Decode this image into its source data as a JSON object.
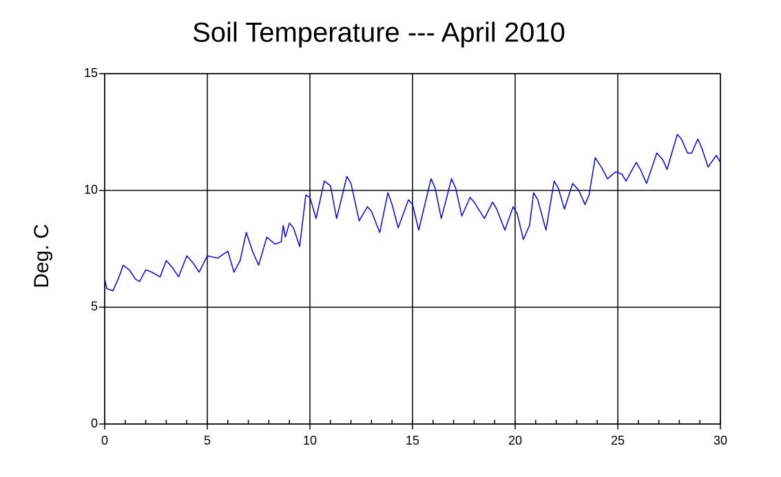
{
  "chart_data": {
    "type": "line",
    "title": "Soil Temperature --- April 2010",
    "y_label": "Deg. C",
    "xlim": [
      0,
      30
    ],
    "ylim": [
      0,
      15
    ],
    "xticks": [
      0,
      5,
      10,
      15,
      20,
      25,
      30
    ],
    "yticks": [
      0,
      5,
      10,
      15
    ],
    "grid": true,
    "series": [
      {
        "color": "#0000ff",
        "x": [
          0,
          0.1,
          0.4,
          0.7,
          0.9,
          1.2,
          1.5,
          1.7,
          2.0,
          2.3,
          2.7,
          3.0,
          3.3,
          3.6,
          4.0,
          4.3,
          4.6,
          5.0,
          5.5,
          6.0,
          6.3,
          6.6,
          6.9,
          7.2,
          7.5,
          7.9,
          8.3,
          8.6,
          8.7,
          8.8,
          9.0,
          9.2,
          9.5,
          9.8,
          10.0,
          10.3,
          10.7,
          11.0,
          11.3,
          11.8,
          12.0,
          12.4,
          12.8,
          13.0,
          13.4,
          13.8,
          14.0,
          14.3,
          14.8,
          15.0,
          15.3,
          15.9,
          16.1,
          16.4,
          16.9,
          17.1,
          17.4,
          17.8,
          18.0,
          18.5,
          18.9,
          19.1,
          19.5,
          19.9,
          20.1,
          20.4,
          20.7,
          20.9,
          21.1,
          21.5,
          21.9,
          22.1,
          22.4,
          22.8,
          23.1,
          23.4,
          23.6,
          23.9,
          24.2,
          24.5,
          24.9,
          25.2,
          25.4,
          25.9,
          26.1,
          26.4,
          26.9,
          27.2,
          27.4,
          27.9,
          28.1,
          28.4,
          28.6,
          28.9,
          29.1,
          29.4,
          29.8,
          30.0
        ],
        "values": [
          6.2,
          5.8,
          5.7,
          6.3,
          6.8,
          6.6,
          6.2,
          6.1,
          6.6,
          6.5,
          6.3,
          7.0,
          6.7,
          6.3,
          7.2,
          6.9,
          6.5,
          7.2,
          7.1,
          7.4,
          6.5,
          7.0,
          8.2,
          7.4,
          6.8,
          8.0,
          7.7,
          7.8,
          8.5,
          8.0,
          8.6,
          8.4,
          7.6,
          9.8,
          9.7,
          8.8,
          10.4,
          10.2,
          8.8,
          10.6,
          10.3,
          8.7,
          9.3,
          9.1,
          8.2,
          9.9,
          9.4,
          8.4,
          9.6,
          9.4,
          8.3,
          10.5,
          10.1,
          8.8,
          10.5,
          10.1,
          8.9,
          9.7,
          9.5,
          8.8,
          9.5,
          9.2,
          8.3,
          9.3,
          9.0,
          7.9,
          8.5,
          9.9,
          9.6,
          8.3,
          10.4,
          10.1,
          9.2,
          10.3,
          10.0,
          9.4,
          9.8,
          11.4,
          11.0,
          10.5,
          10.8,
          10.7,
          10.4,
          11.2,
          10.9,
          10.3,
          11.6,
          11.3,
          10.9,
          12.4,
          12.2,
          11.6,
          11.6,
          12.2,
          11.8,
          11.0,
          11.5,
          11.2
        ]
      }
    ]
  }
}
